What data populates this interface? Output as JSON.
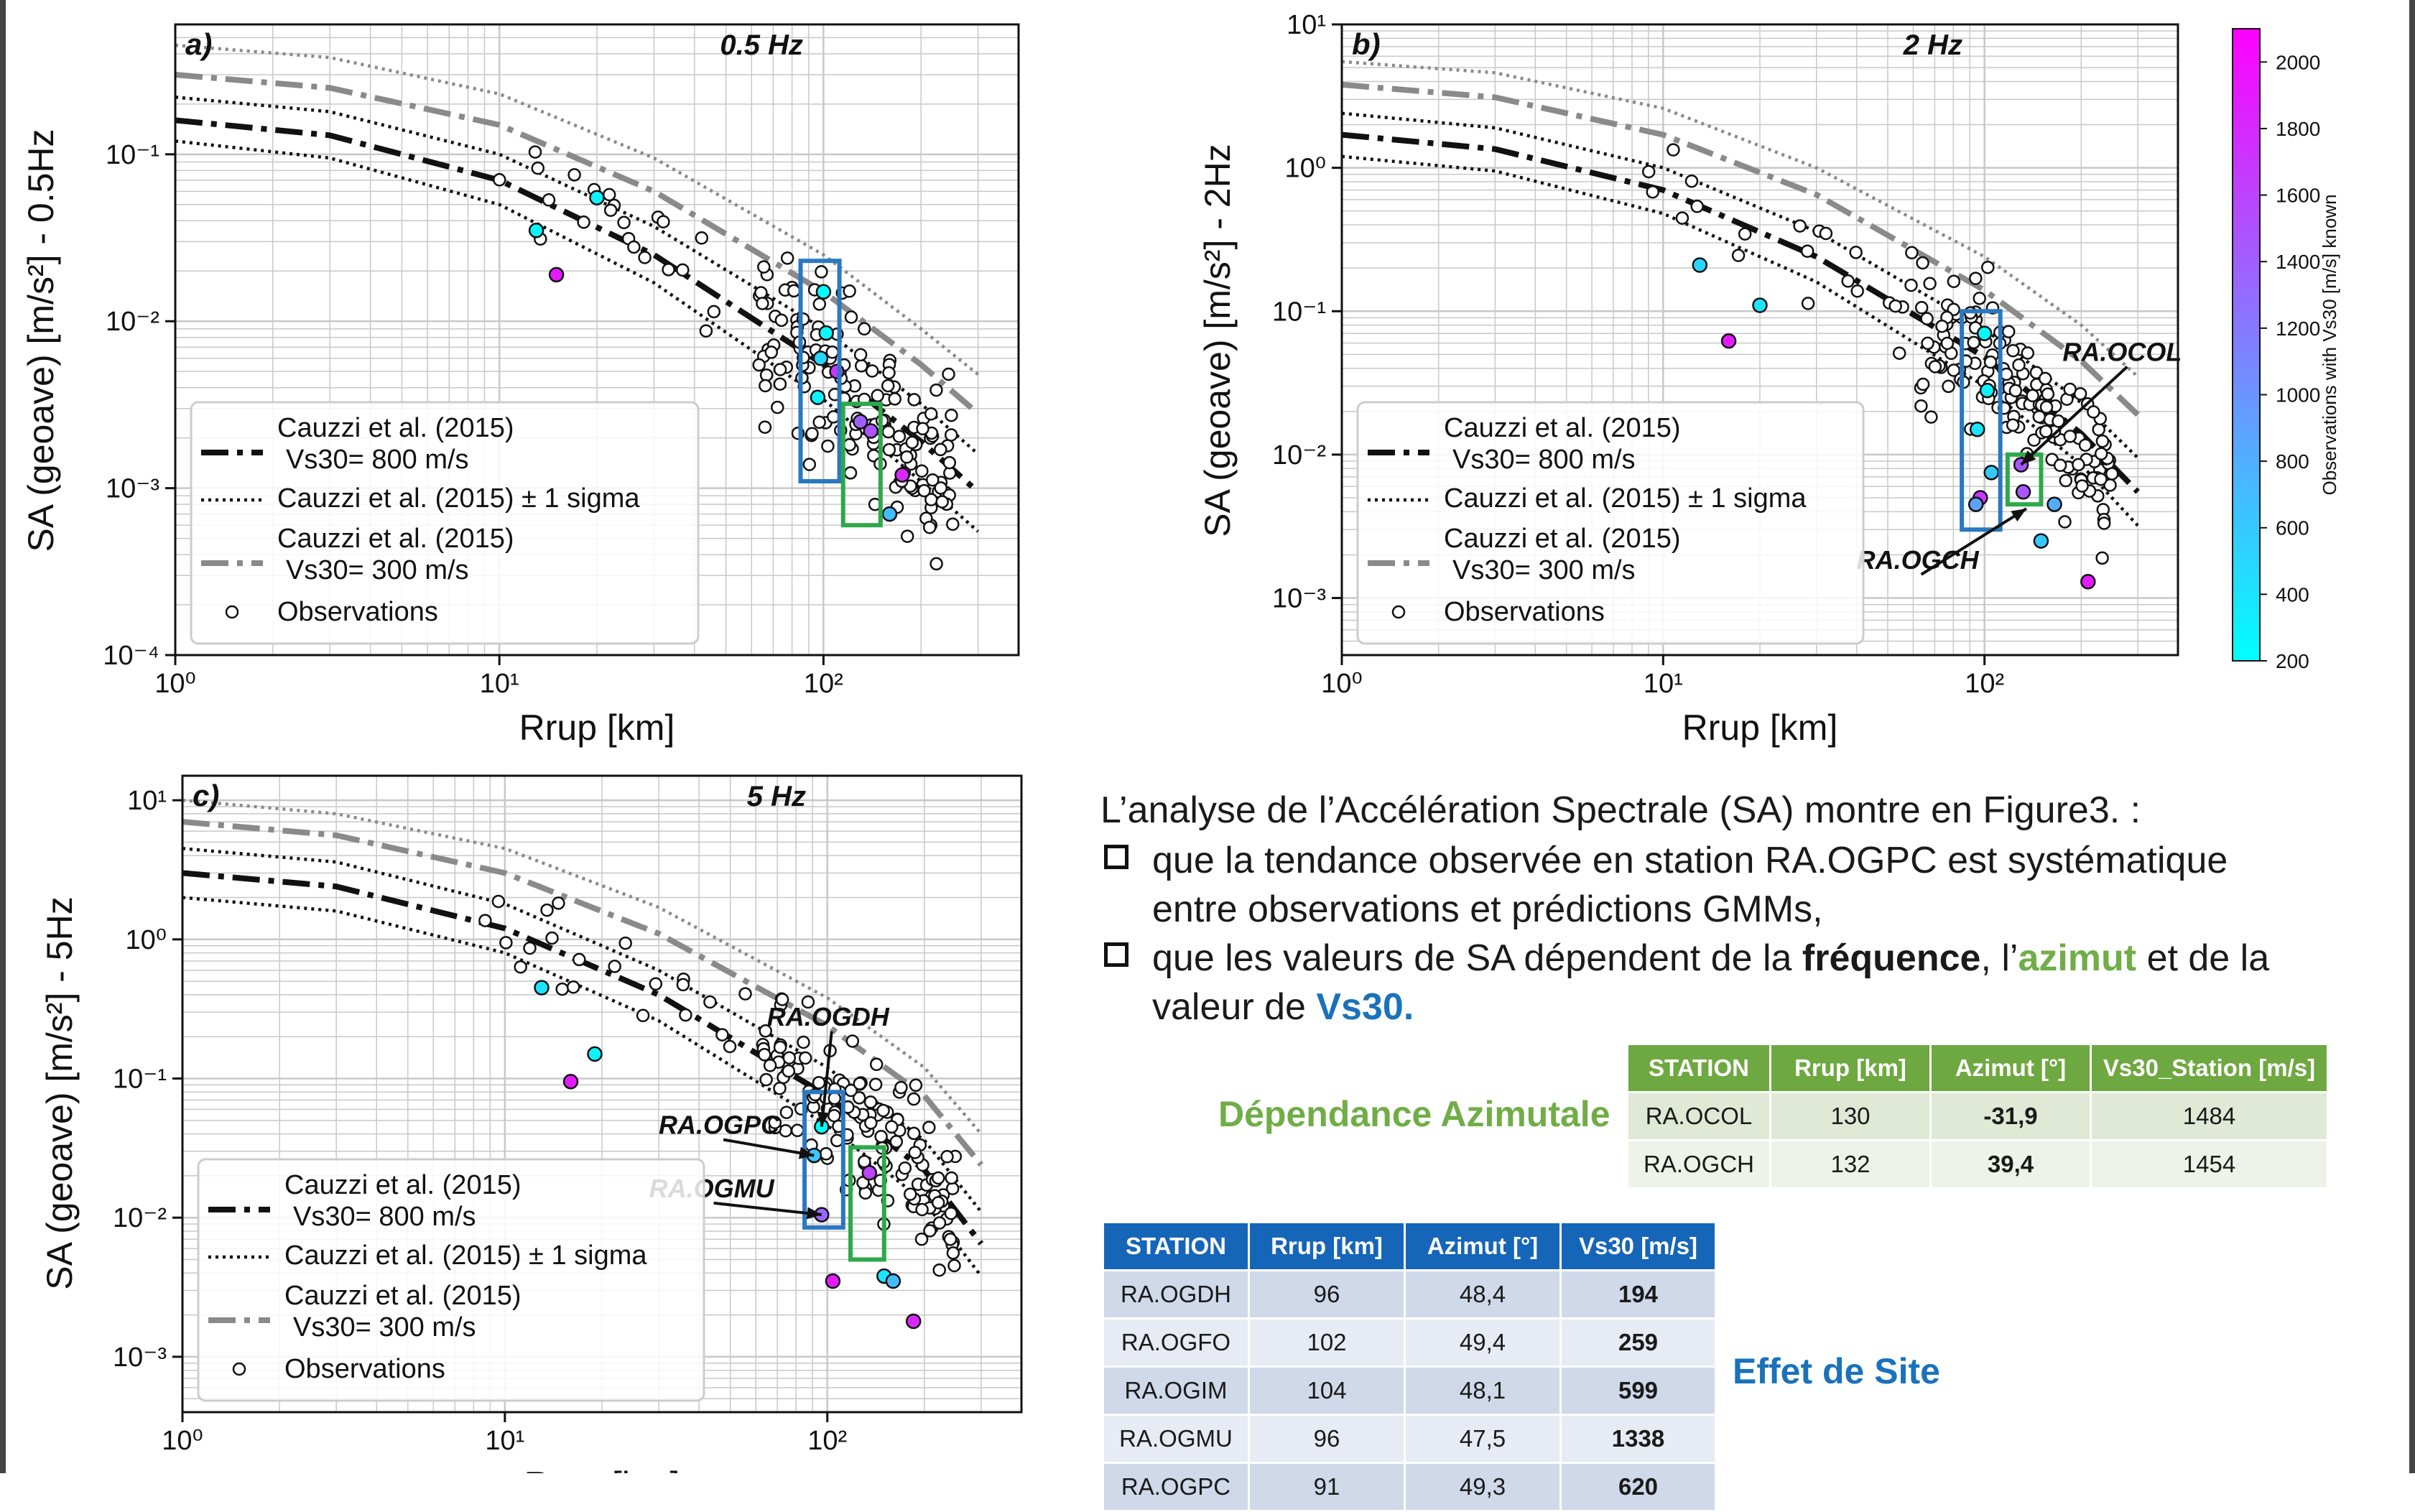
{
  "figure": {
    "x_axis_label": "Rrup [km]",
    "legend": {
      "l800": "Cauzzi et al. (2015)",
      "l800b": "Vs30= 800 m/s",
      "lsig": "Cauzzi et al. (2015) ± 1 sigma",
      "l300": "Cauzzi et al. (2015)",
      "l300b": "Vs30= 300 m/s",
      "lobs": "Observations"
    },
    "colorbar": {
      "label": "Observations with Vs30 [m/s] known",
      "ticks": [
        200,
        400,
        600,
        800,
        1000,
        1200,
        1400,
        1600,
        1800,
        2000
      ],
      "range": [
        200,
        2100
      ],
      "color_low": "#00ffff",
      "color_high": "#ff00ff"
    }
  },
  "chart_data": [
    {
      "type": "scatter",
      "panel": "a)",
      "freq_label": "0.5 Hz",
      "ylabel": "SA (geoave) [m/s²] - 0.5Hz",
      "xlabel": "Rrup [km]",
      "x_scale": "log",
      "y_scale": "log",
      "xlim": [
        1,
        400
      ],
      "ylim": [
        0.0001,
        0.6
      ],
      "x_ticks": [
        "10⁰",
        "10¹",
        "10²"
      ],
      "y_ticks": [
        "10⁻⁴",
        "10⁻³",
        "10⁻²",
        "10⁻¹"
      ],
      "grid": true,
      "legend_position": "lower-left",
      "curves": [
        {
          "style": "dashdot-black",
          "points": [
            [
              1,
              0.16
            ],
            [
              3,
              0.13
            ],
            [
              10,
              0.07
            ],
            [
              30,
              0.025
            ],
            [
              100,
              0.0055
            ],
            [
              200,
              0.0019
            ],
            [
              300,
              0.00095
            ]
          ]
        },
        {
          "style": "dotted-black",
          "points": [
            [
              1,
              0.22
            ],
            [
              3,
              0.18
            ],
            [
              10,
              0.1
            ],
            [
              30,
              0.037
            ],
            [
              100,
              0.009
            ],
            [
              200,
              0.0032
            ],
            [
              300,
              0.0016
            ]
          ]
        },
        {
          "style": "dotted-black",
          "points": [
            [
              1,
              0.12
            ],
            [
              3,
              0.095
            ],
            [
              10,
              0.05
            ],
            [
              30,
              0.017
            ],
            [
              100,
              0.0034
            ],
            [
              200,
              0.0011
            ],
            [
              300,
              0.00055
            ]
          ]
        },
        {
          "style": "dashdot-gray",
          "points": [
            [
              1,
              0.3
            ],
            [
              3,
              0.25
            ],
            [
              10,
              0.15
            ],
            [
              30,
              0.06
            ],
            [
              100,
              0.015
            ],
            [
              200,
              0.0055
            ],
            [
              300,
              0.0028
            ]
          ]
        },
        {
          "style": "dotted-gray",
          "points": [
            [
              1,
              0.45
            ],
            [
              3,
              0.38
            ],
            [
              10,
              0.23
            ],
            [
              30,
              0.095
            ],
            [
              100,
              0.025
            ],
            [
              200,
              0.009
            ],
            [
              300,
              0.0048
            ]
          ]
        }
      ],
      "colored_points": [
        {
          "x": 13,
          "y": 0.035,
          "vs30": 259
        },
        {
          "x": 15,
          "y": 0.019,
          "vs30": 1900
        },
        {
          "x": 20,
          "y": 0.055,
          "vs30": 300
        },
        {
          "x": 100,
          "y": 0.015,
          "vs30": 200
        },
        {
          "x": 102,
          "y": 0.0085,
          "vs30": 259
        },
        {
          "x": 98,
          "y": 0.006,
          "vs30": 500
        },
        {
          "x": 96,
          "y": 0.0035,
          "vs30": 300
        },
        {
          "x": 110,
          "y": 0.005,
          "vs30": 1700
        },
        {
          "x": 140,
          "y": 0.0022,
          "vs30": 1500
        },
        {
          "x": 130,
          "y": 0.0025,
          "vs30": 1400
        },
        {
          "x": 160,
          "y": 0.0007,
          "vs30": 700
        },
        {
          "x": 175,
          "y": 0.0012,
          "vs30": 1800
        }
      ],
      "boxes": [
        {
          "color": "#2a78c0",
          "x": [
            85,
            112
          ],
          "y": [
            0.0011,
            0.023
          ]
        },
        {
          "color": "#2ea84a",
          "x": [
            115,
            150
          ],
          "y": [
            0.0006,
            0.0032
          ]
        }
      ]
    },
    {
      "type": "scatter",
      "panel": "b)",
      "freq_label": "2 Hz",
      "ylabel": "SA (geoave) [m/s²] - 2Hz",
      "xlabel": "Rrup [km]",
      "x_scale": "log",
      "y_scale": "log",
      "xlim": [
        1,
        400
      ],
      "ylim": [
        0.0004,
        10
      ],
      "x_ticks": [
        "10⁰",
        "10¹",
        "10²"
      ],
      "y_ticks": [
        "10⁻³",
        "10⁻²",
        "10⁻¹",
        "10⁰",
        "10¹"
      ],
      "grid": true,
      "legend_position": "lower-left",
      "annotations": [
        {
          "text": "RA.OCOL",
          "x": 175,
          "y": 0.045,
          "arrow_to": [
            130,
            0.0085
          ]
        },
        {
          "text": "RA.OGCH",
          "x": 40,
          "y": 0.0016,
          "arrow_to": [
            135,
            0.0042
          ]
        }
      ],
      "curves": [
        {
          "style": "dashdot-black",
          "points": [
            [
              1,
              1.7
            ],
            [
              3,
              1.35
            ],
            [
              10,
              0.7
            ],
            [
              30,
              0.24
            ],
            [
              100,
              0.048
            ],
            [
              200,
              0.014
            ],
            [
              300,
              0.0055
            ]
          ]
        },
        {
          "style": "dotted-black",
          "points": [
            [
              1,
              2.4
            ],
            [
              3,
              1.9
            ],
            [
              10,
              1.0
            ],
            [
              30,
              0.36
            ],
            [
              100,
              0.075
            ],
            [
              200,
              0.023
            ],
            [
              300,
              0.0095
            ]
          ]
        },
        {
          "style": "dotted-black",
          "points": [
            [
              1,
              1.2
            ],
            [
              3,
              0.95
            ],
            [
              10,
              0.48
            ],
            [
              30,
              0.16
            ],
            [
              100,
              0.03
            ],
            [
              200,
              0.0085
            ],
            [
              300,
              0.0032
            ]
          ]
        },
        {
          "style": "dashdot-gray",
          "points": [
            [
              1,
              3.8
            ],
            [
              3,
              3.1
            ],
            [
              10,
              1.7
            ],
            [
              30,
              0.65
            ],
            [
              100,
              0.14
            ],
            [
              200,
              0.045
            ],
            [
              300,
              0.019
            ]
          ]
        },
        {
          "style": "dotted-gray",
          "points": [
            [
              1,
              5.5
            ],
            [
              3,
              4.6
            ],
            [
              10,
              2.6
            ],
            [
              30,
              1.0
            ],
            [
              100,
              0.24
            ],
            [
              200,
              0.08
            ],
            [
              300,
              0.035
            ]
          ]
        }
      ],
      "colored_points": [
        {
          "x": 13,
          "y": 0.21,
          "vs30": 500
        },
        {
          "x": 16,
          "y": 0.062,
          "vs30": 1900
        },
        {
          "x": 20,
          "y": 0.11,
          "vs30": 400
        },
        {
          "x": 100,
          "y": 0.07,
          "vs30": 200
        },
        {
          "x": 102,
          "y": 0.028,
          "vs30": 300
        },
        {
          "x": 95,
          "y": 0.015,
          "vs30": 400
        },
        {
          "x": 105,
          "y": 0.0075,
          "vs30": 600
        },
        {
          "x": 97,
          "y": 0.005,
          "vs30": 1700
        },
        {
          "x": 94,
          "y": 0.0045,
          "vs30": 900
        },
        {
          "x": 130,
          "y": 0.0085,
          "vs30": 1484
        },
        {
          "x": 132,
          "y": 0.0055,
          "vs30": 1454
        },
        {
          "x": 165,
          "y": 0.0045,
          "vs30": 800
        },
        {
          "x": 150,
          "y": 0.0025,
          "vs30": 600
        },
        {
          "x": 210,
          "y": 0.0013,
          "vs30": 1900
        }
      ],
      "boxes": [
        {
          "color": "#2a78c0",
          "x": [
            85,
            112
          ],
          "y": [
            0.003,
            0.1
          ]
        },
        {
          "color": "#2ea84a",
          "x": [
            118,
            150
          ],
          "y": [
            0.0045,
            0.01
          ]
        }
      ]
    },
    {
      "type": "scatter",
      "panel": "c)",
      "freq_label": "5 Hz",
      "ylabel": "SA (geoave) [m/s²] - 5Hz",
      "xlabel": "Rrup [km]",
      "x_scale": "log",
      "y_scale": "log",
      "xlim": [
        1,
        400
      ],
      "ylim": [
        0.0004,
        15
      ],
      "x_ticks": [
        "10⁰",
        "10¹",
        "10²"
      ],
      "y_ticks": [
        "10⁻³",
        "10⁻²",
        "10⁻¹",
        "10⁰",
        "10¹"
      ],
      "grid": true,
      "legend_position": "lower-left",
      "annotations": [
        {
          "text": "RA.OGDH",
          "x": 65,
          "y": 0.24,
          "arrow_to": [
            96,
            0.045
          ]
        },
        {
          "text": "RA.OGPC",
          "x": 30,
          "y": 0.04,
          "arrow_to": [
            91,
            0.028
          ]
        },
        {
          "text": "RA.OGMU",
          "x": 28,
          "y": 0.014,
          "arrow_to": [
            96,
            0.0105
          ]
        }
      ],
      "curves": [
        {
          "style": "dashdot-black",
          "points": [
            [
              1,
              3.0
            ],
            [
              3,
              2.4
            ],
            [
              10,
              1.2
            ],
            [
              30,
              0.4
            ],
            [
              100,
              0.075
            ],
            [
              200,
              0.022
            ],
            [
              300,
              0.0065
            ]
          ]
        },
        {
          "style": "dotted-black",
          "points": [
            [
              1,
              4.5
            ],
            [
              3,
              3.6
            ],
            [
              10,
              1.8
            ],
            [
              30,
              0.6
            ],
            [
              100,
              0.12
            ],
            [
              200,
              0.036
            ],
            [
              300,
              0.011
            ]
          ]
        },
        {
          "style": "dotted-black",
          "points": [
            [
              1,
              2.0
            ],
            [
              3,
              1.6
            ],
            [
              10,
              0.8
            ],
            [
              30,
              0.26
            ],
            [
              100,
              0.046
            ],
            [
              200,
              0.013
            ],
            [
              300,
              0.0038
            ]
          ]
        },
        {
          "style": "dashdot-gray",
          "points": [
            [
              1,
              7.0
            ],
            [
              3,
              5.6
            ],
            [
              10,
              3.0
            ],
            [
              30,
              1.1
            ],
            [
              100,
              0.24
            ],
            [
              200,
              0.075
            ],
            [
              300,
              0.024
            ]
          ]
        },
        {
          "style": "dotted-gray",
          "points": [
            [
              1,
              10.0
            ],
            [
              3,
              8.0
            ],
            [
              10,
              4.5
            ],
            [
              30,
              1.7
            ],
            [
              100,
              0.38
            ],
            [
              200,
              0.12
            ],
            [
              300,
              0.04
            ]
          ]
        }
      ],
      "colored_points": [
        {
          "x": 13,
          "y": 0.45,
          "vs30": 400
        },
        {
          "x": 16,
          "y": 0.095,
          "vs30": 1900
        },
        {
          "x": 19,
          "y": 0.15,
          "vs30": 300
        },
        {
          "x": 96,
          "y": 0.045,
          "vs30": 194
        },
        {
          "x": 91,
          "y": 0.028,
          "vs30": 620
        },
        {
          "x": 96,
          "y": 0.0105,
          "vs30": 1338
        },
        {
          "x": 104,
          "y": 0.0035,
          "vs30": 1900
        },
        {
          "x": 135,
          "y": 0.021,
          "vs30": 1600
        },
        {
          "x": 150,
          "y": 0.0038,
          "vs30": 400
        },
        {
          "x": 160,
          "y": 0.0035,
          "vs30": 700
        },
        {
          "x": 185,
          "y": 0.0018,
          "vs30": 1800
        }
      ],
      "boxes": [
        {
          "color": "#2a78c0",
          "x": [
            85,
            112
          ],
          "y": [
            0.0085,
            0.08
          ]
        },
        {
          "color": "#2ea84a",
          "x": [
            118,
            150
          ],
          "y": [
            0.005,
            0.032
          ]
        }
      ]
    }
  ],
  "text": {
    "intro": "L’analyse de l’Accélération Spectrale (SA) montre en Figure3. :",
    "b1_l1": "que la tendance observée en station RA.OGPC est systématique",
    "b1_l2": "entre observations et prédictions GMMs,",
    "b2_p1": "que les valeurs de SA dépendent de la ",
    "b2_bold": "fréquence",
    "b2_p2": ", l’",
    "b2_az": "azimut",
    "b2_p3": " et de la",
    "b2_l2a": "valeur de ",
    "b2_vs": "Vs30.",
    "label_az": "Dépendance Azimutale",
    "label_site": "Effet de Site"
  },
  "table_azimuth": {
    "headers": [
      "STATION",
      "Rrup [km]",
      "Azimut [°]",
      "Vs30_Station [m/s]"
    ],
    "rows": [
      [
        "RA.OCOL",
        "130",
        "-31,9",
        "1484"
      ],
      [
        "RA.OGCH",
        "132",
        "39,4",
        "1454"
      ]
    ]
  },
  "table_site": {
    "headers": [
      "STATION",
      "Rrup [km]",
      "Azimut [°]",
      "Vs30 [m/s]"
    ],
    "rows": [
      [
        "RA.OGDH",
        "96",
        "48,4",
        "194"
      ],
      [
        "RA.OGFO",
        "102",
        "49,4",
        "259"
      ],
      [
        "RA.OGIM",
        "104",
        "48,1",
        "599"
      ],
      [
        "RA.OGMU",
        "96",
        "47,5",
        "1338"
      ],
      [
        "RA.OGPC",
        "91",
        "49,3",
        "620"
      ]
    ]
  }
}
